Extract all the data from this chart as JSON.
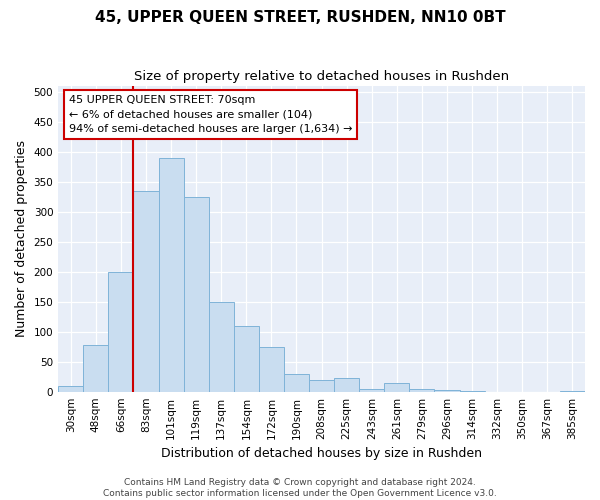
{
  "title": "45, UPPER QUEEN STREET, RUSHDEN, NN10 0BT",
  "subtitle": "Size of property relative to detached houses in Rushden",
  "xlabel": "Distribution of detached houses by size in Rushden",
  "ylabel": "Number of detached properties",
  "bar_labels": [
    "30sqm",
    "48sqm",
    "66sqm",
    "83sqm",
    "101sqm",
    "119sqm",
    "137sqm",
    "154sqm",
    "172sqm",
    "190sqm",
    "208sqm",
    "225sqm",
    "243sqm",
    "261sqm",
    "279sqm",
    "296sqm",
    "314sqm",
    "332sqm",
    "350sqm",
    "367sqm",
    "385sqm"
  ],
  "bar_values": [
    10,
    78,
    200,
    335,
    390,
    325,
    150,
    110,
    75,
    30,
    20,
    22,
    5,
    15,
    5,
    3,
    1,
    0,
    0,
    0,
    1
  ],
  "bar_color": "#c9ddf0",
  "bar_edge_color": "#7fb3d8",
  "vline_x_index": 2,
  "vline_color": "#cc0000",
  "ylim": [
    0,
    510
  ],
  "yticks": [
    0,
    50,
    100,
    150,
    200,
    250,
    300,
    350,
    400,
    450,
    500
  ],
  "annotation_title": "45 UPPER QUEEN STREET: 70sqm",
  "annotation_line1": "← 6% of detached houses are smaller (104)",
  "annotation_line2": "94% of semi-detached houses are larger (1,634) →",
  "annotation_box_facecolor": "#ffffff",
  "annotation_box_edgecolor": "#cc0000",
  "footer_line1": "Contains HM Land Registry data © Crown copyright and database right 2024.",
  "footer_line2": "Contains public sector information licensed under the Open Government Licence v3.0.",
  "fig_facecolor": "#ffffff",
  "plot_facecolor": "#e8eef8",
  "grid_color": "#ffffff",
  "title_fontsize": 11,
  "subtitle_fontsize": 9.5,
  "axis_label_fontsize": 9,
  "tick_fontsize": 7.5,
  "annotation_fontsize": 8,
  "footer_fontsize": 6.5
}
